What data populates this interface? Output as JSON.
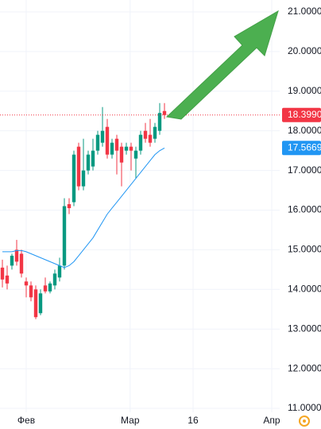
{
  "chart_data": {
    "type": "candlestick",
    "x": [
      0,
      1,
      2,
      3,
      4,
      5,
      6,
      7,
      8,
      9,
      10,
      11,
      12,
      13,
      14,
      15,
      16,
      17,
      18,
      19,
      20,
      21,
      22,
      23,
      24,
      25,
      26,
      27,
      28,
      29,
      30,
      31,
      32,
      33,
      34
    ],
    "open": [
      14.55,
      14.35,
      14.6,
      15.0,
      14.9,
      14.2,
      14.1,
      14.0,
      13.4,
      14.1,
      13.95,
      14.1,
      14.3,
      14.6,
      16.15,
      16.2,
      17.6,
      16.6,
      17.0,
      17.1,
      17.5,
      17.7,
      18.1,
      17.4,
      17.8,
      17.6,
      17.5,
      17.6,
      17.3,
      17.5,
      18.0,
      17.9,
      17.8,
      18.0,
      18.5
    ],
    "high": [
      14.75,
      14.6,
      14.9,
      15.25,
      15.0,
      14.3,
      14.2,
      14.1,
      14.0,
      14.3,
      14.2,
      14.5,
      14.8,
      16.3,
      16.3,
      17.5,
      17.7,
      17.8,
      17.5,
      17.8,
      18.0,
      18.6,
      18.3,
      17.8,
      17.9,
      17.7,
      17.7,
      17.7,
      17.6,
      18.0,
      18.2,
      18.3,
      18.2,
      18.7,
      18.7
    ],
    "low": [
      14.05,
      14.0,
      14.5,
      14.6,
      14.3,
      13.8,
      13.7,
      13.25,
      13.35,
      13.9,
      13.9,
      14.0,
      14.2,
      14.5,
      15.9,
      16.1,
      16.5,
      16.5,
      16.9,
      17.0,
      17.4,
      17.6,
      17.3,
      17.3,
      16.9,
      16.6,
      17.4,
      17.0,
      16.8,
      17.4,
      17.7,
      17.6,
      17.7,
      17.9,
      18.3
    ],
    "close": [
      14.25,
      14.15,
      14.85,
      14.7,
      14.4,
      14.1,
      13.8,
      13.3,
      13.9,
      13.95,
      14.15,
      14.4,
      14.6,
      16.1,
      16.05,
      17.4,
      16.6,
      17.0,
      17.4,
      17.5,
      17.9,
      18.0,
      17.4,
      17.7,
      17.5,
      17.2,
      17.6,
      17.5,
      17.5,
      17.9,
      17.8,
      17.7,
      18.1,
      18.45,
      18.399
    ],
    "up_color": "#089981",
    "down_color": "#f23645",
    "ma": {
      "color": "#2196f3",
      "values": [
        14.95,
        14.95,
        14.95,
        14.98,
        14.98,
        14.95,
        14.9,
        14.85,
        14.8,
        14.75,
        14.7,
        14.65,
        14.6,
        14.55,
        14.6,
        14.7,
        14.85,
        15.0,
        15.15,
        15.3,
        15.5,
        15.7,
        15.9,
        16.05,
        16.2,
        16.35,
        16.5,
        16.65,
        16.8,
        16.95,
        17.1,
        17.25,
        17.4,
        17.5,
        17.5669
      ]
    },
    "last_price": {
      "value": 18.399,
      "label": "18.3990"
    },
    "ma_last": {
      "value": 17.5669,
      "label": "17.5669"
    },
    "xlim": [
      -0.5,
      58.17
    ],
    "ylim": [
      10.9,
      21.3
    ],
    "xticks": [
      {
        "value": 5,
        "label": "Фев"
      },
      {
        "value": 26.8,
        "label": "Мар"
      },
      {
        "value": 40,
        "label": "16"
      },
      {
        "value": 56.5,
        "label": "Апр"
      }
    ],
    "yticks": [
      {
        "value": 11,
        "label": "11.0000"
      },
      {
        "value": 12,
        "label": "12.0000"
      },
      {
        "value": 13,
        "label": "13.0000"
      },
      {
        "value": 14,
        "label": "14.0000"
      },
      {
        "value": 15,
        "label": "15.0000"
      },
      {
        "value": 16,
        "label": "16.0000"
      },
      {
        "value": 17,
        "label": "17.0000"
      },
      {
        "value": 18,
        "label": "18.0000"
      },
      {
        "value": 19,
        "label": "19.0000"
      },
      {
        "value": 20,
        "label": "20.0000"
      },
      {
        "value": 21,
        "label": "21.0000"
      }
    ],
    "grid": true
  }
}
